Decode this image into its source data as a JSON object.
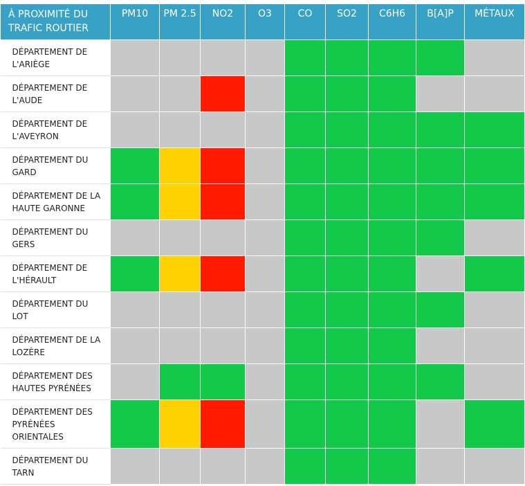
{
  "header": {
    "area_label": "À PROXIMITÉ DU TRAFIC ROUTIER",
    "pollutants": [
      "PM10",
      "PM 2.5",
      "NO2",
      "O3",
      "CO",
      "SO2",
      "C6H6",
      "B[A]P",
      "MÉTAUX"
    ]
  },
  "status_colors": {
    "green": "#14c94a",
    "grey": "#c8c8c8",
    "red": "#ff1a00",
    "yellow": "#fdd200"
  },
  "rows": [
    {
      "name": "DÉPARTEMENT DE L'ARIÈGE",
      "cells": [
        "grey",
        "grey",
        "grey",
        "grey",
        "green",
        "green",
        "green",
        "green",
        "grey"
      ]
    },
    {
      "name": "DÉPARTEMENT DE L'AUDE",
      "cells": [
        "grey",
        "grey",
        "red",
        "grey",
        "green",
        "green",
        "green",
        "grey",
        "grey"
      ]
    },
    {
      "name": "DÉPARTEMENT DE L'AVEYRON",
      "cells": [
        "grey",
        "grey",
        "grey",
        "grey",
        "green",
        "green",
        "green",
        "green",
        "green"
      ]
    },
    {
      "name": "DÉPARTEMENT DU GARD",
      "cells": [
        "green",
        "yellow",
        "red",
        "grey",
        "green",
        "green",
        "green",
        "green",
        "green"
      ]
    },
    {
      "name": "DÉPARTEMENT DE LA HAUTE GARONNE",
      "cells": [
        "green",
        "yellow",
        "red",
        "grey",
        "green",
        "green",
        "green",
        "green",
        "green"
      ]
    },
    {
      "name": "DÉPARTEMENT DU GERS",
      "cells": [
        "grey",
        "grey",
        "grey",
        "grey",
        "green",
        "green",
        "green",
        "green",
        "grey"
      ]
    },
    {
      "name": "DÉPARTEMENT DE L'HÉRAULT",
      "cells": [
        "green",
        "yellow",
        "red",
        "grey",
        "green",
        "green",
        "green",
        "grey",
        "green"
      ]
    },
    {
      "name": "DÉPARTEMENT DU LOT",
      "cells": [
        "grey",
        "grey",
        "grey",
        "grey",
        "green",
        "green",
        "green",
        "green",
        "grey"
      ]
    },
    {
      "name": "DÉPARTEMENT DE LA LOZÈRE",
      "cells": [
        "grey",
        "grey",
        "grey",
        "grey",
        "green",
        "green",
        "green",
        "grey",
        "grey"
      ]
    },
    {
      "name": "DÉPARTEMENT DES HAUTES PYRÉNÉES",
      "cells": [
        "grey",
        "green",
        "green",
        "grey",
        "green",
        "green",
        "green",
        "green",
        "grey"
      ]
    },
    {
      "name": "DÉPARTEMENT DES PYRÉNÉES ORIENTALES",
      "cells": [
        "green",
        "yellow",
        "red",
        "grey",
        "green",
        "green",
        "green",
        "grey",
        "green"
      ]
    },
    {
      "name": "DÉPARTEMENT DU TARN",
      "cells": [
        "grey",
        "grey",
        "grey",
        "grey",
        "green",
        "green",
        "green",
        "grey",
        "grey"
      ]
    }
  ]
}
